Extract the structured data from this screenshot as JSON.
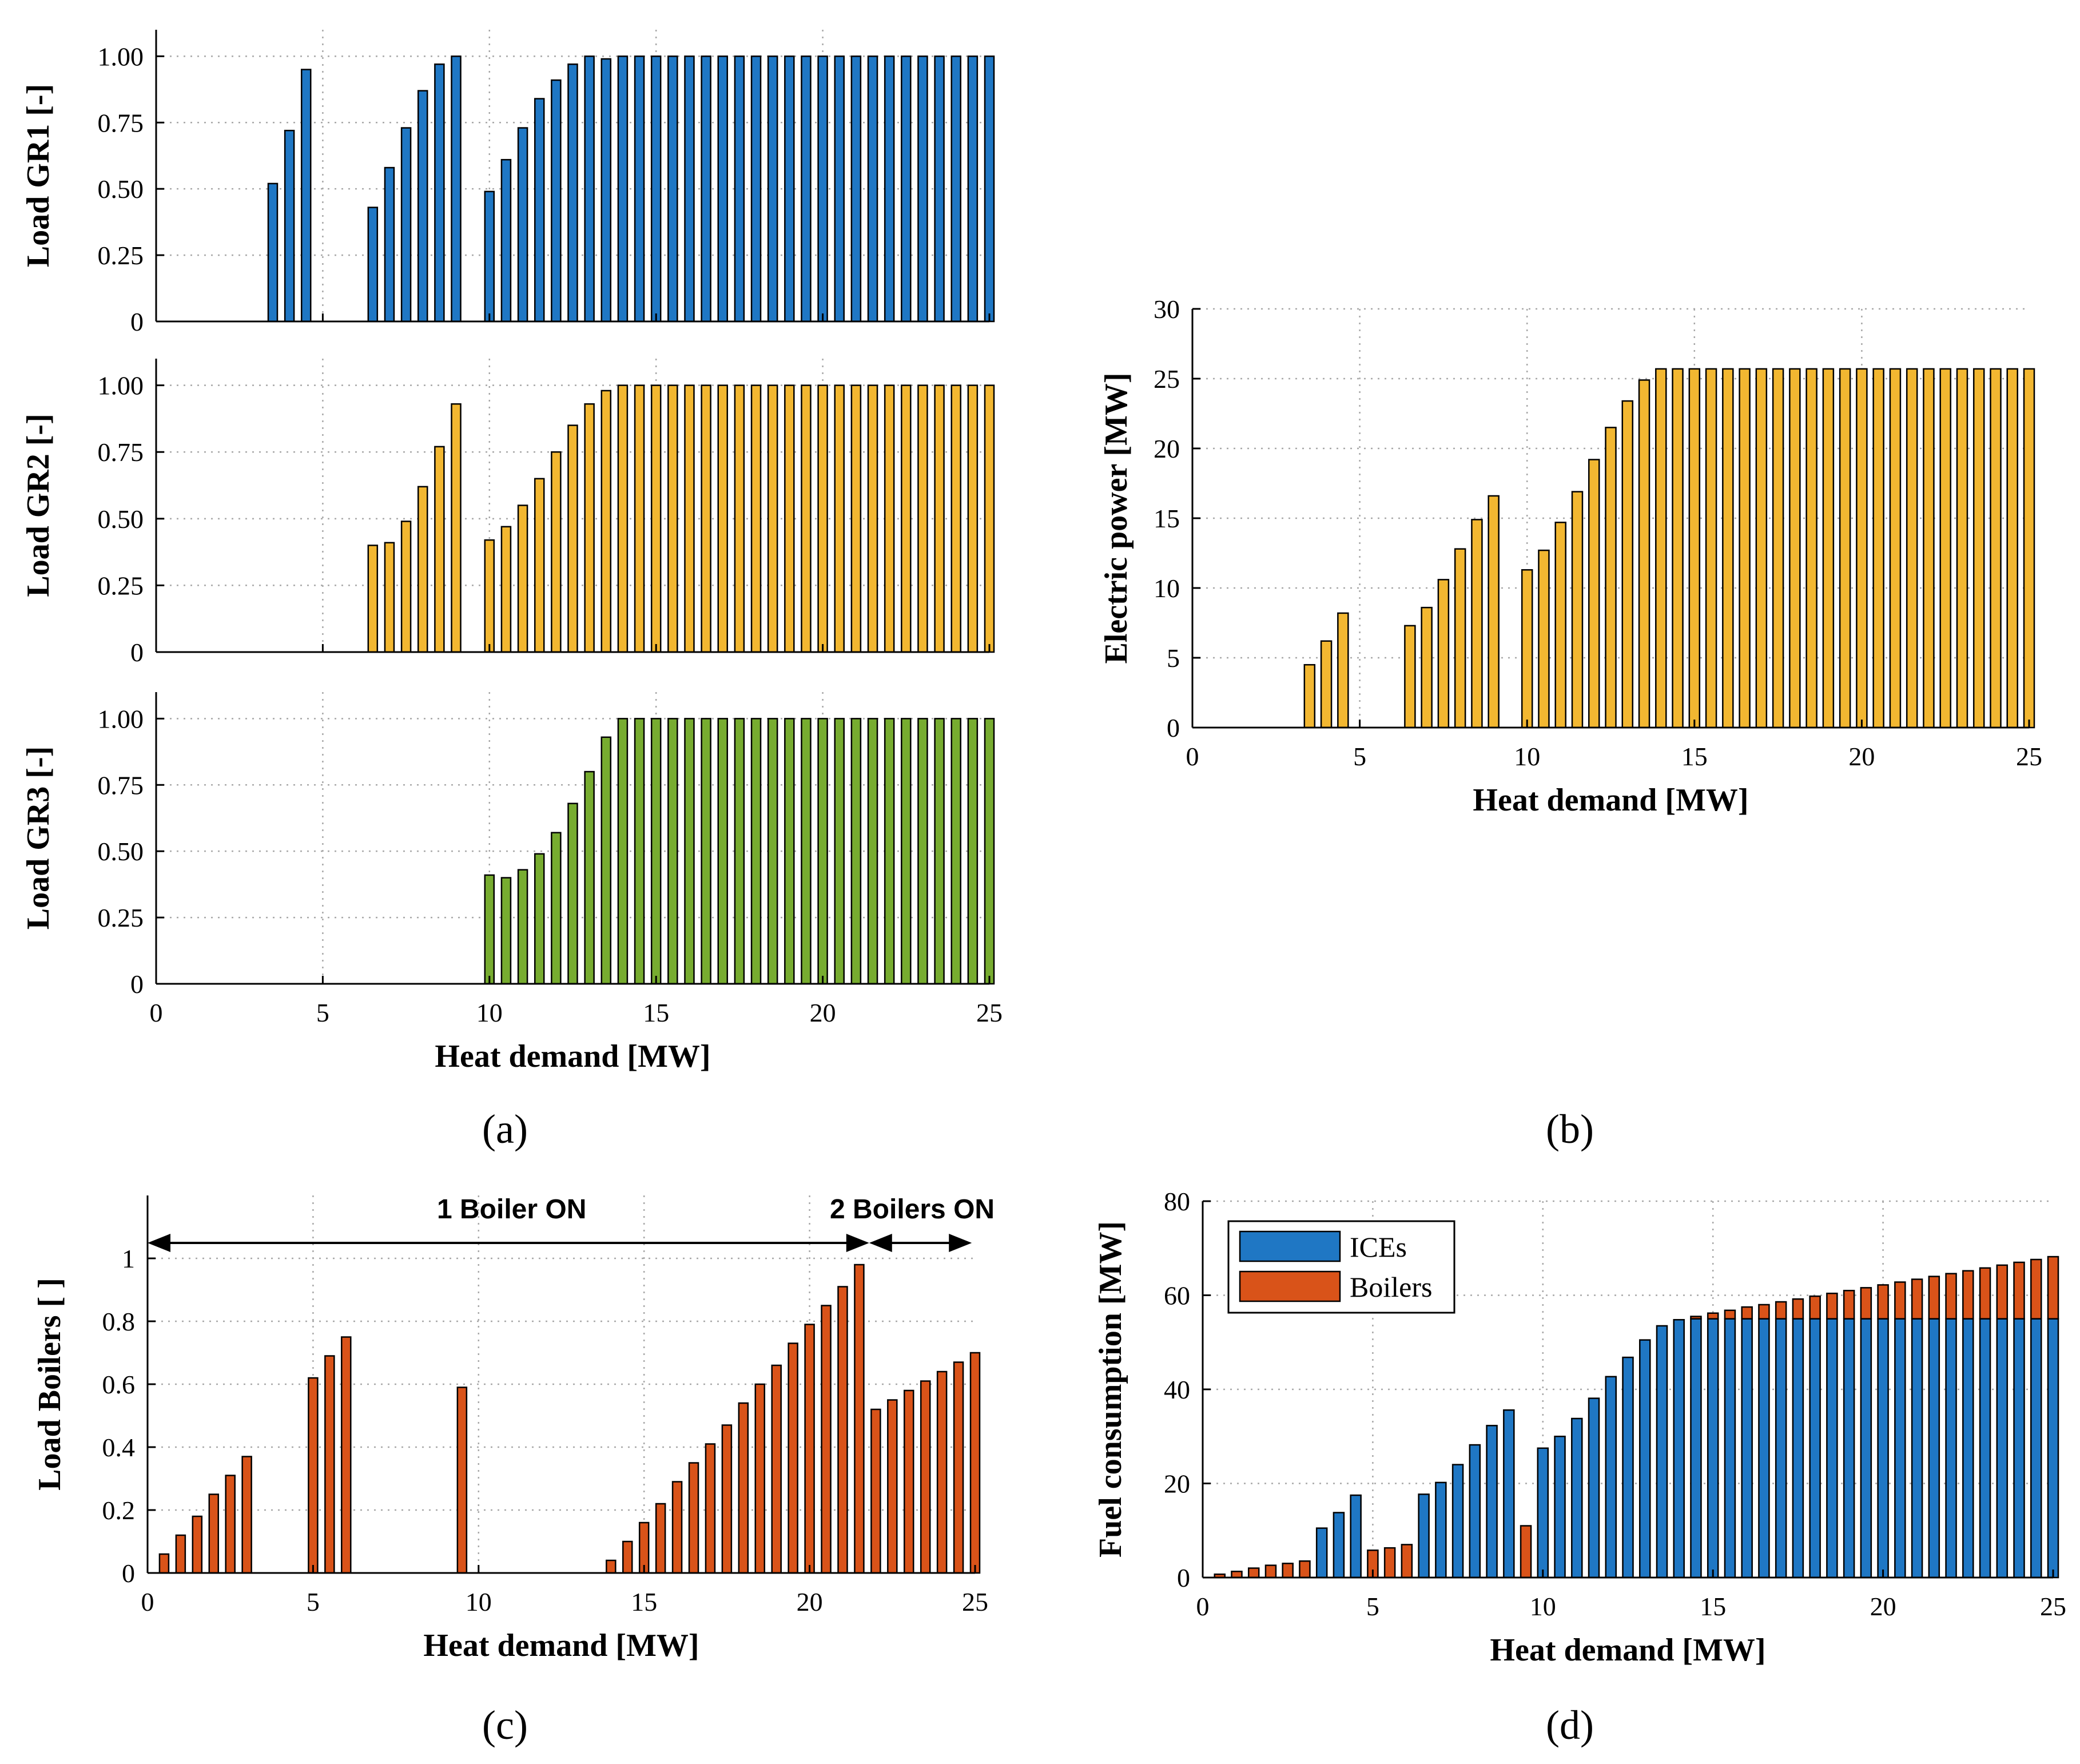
{
  "colors": {
    "ices_blue": "#1f77c4",
    "gr2_yellow": "#f2b731",
    "gr3_green": "#77ac30",
    "boilers_orange": "#d95319"
  },
  "chart_data": [
    {
      "id": "a1",
      "type": "bar",
      "panel": "a",
      "xlabel": "",
      "ylabel": "Load GR1 [-]",
      "xlim": [
        0,
        25
      ],
      "ylim": [
        0,
        1.1
      ],
      "xticks": [
        "0",
        "5",
        "10",
        "15",
        "20",
        "25"
      ],
      "yticks": [
        "0",
        "0.25",
        "0.50",
        "0.75",
        "1.00"
      ],
      "x": [
        3.5,
        4,
        4.5,
        6.5,
        7,
        7.5,
        8,
        8.5,
        9,
        10,
        10.5,
        11,
        11.5,
        12,
        12.5,
        13,
        13.5,
        14,
        14.5,
        15,
        15.5,
        16,
        16.5,
        17,
        17.5,
        18,
        18.5,
        19,
        19.5,
        20,
        20.5,
        21,
        21.5,
        22,
        22.5,
        23,
        23.5,
        24,
        24.5,
        25
      ],
      "values": [
        0.52,
        0.72,
        0.95,
        0.43,
        0.58,
        0.73,
        0.87,
        0.97,
        1.0,
        0.49,
        0.61,
        0.73,
        0.84,
        0.91,
        0.97,
        1.0,
        0.99,
        1,
        1,
        1,
        1,
        1,
        1,
        1,
        1,
        1,
        1,
        1,
        1,
        1,
        1,
        1,
        1,
        1,
        1,
        1,
        1,
        1,
        1,
        1
      ]
    },
    {
      "id": "a2",
      "type": "bar",
      "panel": "a",
      "xlabel": "",
      "ylabel": "Load GR2 [-]",
      "xlim": [
        0,
        25
      ],
      "ylim": [
        0,
        1.1
      ],
      "xticks": [
        "0",
        "5",
        "10",
        "15",
        "20",
        "25"
      ],
      "yticks": [
        "0",
        "0.25",
        "0.50",
        "0.75",
        "1.00"
      ],
      "x": [
        6.5,
        7,
        7.5,
        8,
        8.5,
        9,
        10,
        10.5,
        11,
        11.5,
        12,
        12.5,
        13,
        13.5,
        14,
        14.5,
        15,
        15.5,
        16,
        16.5,
        17,
        17.5,
        18,
        18.5,
        19,
        19.5,
        20,
        20.5,
        21,
        21.5,
        22,
        22.5,
        23,
        23.5,
        24,
        24.5,
        25
      ],
      "values": [
        0.4,
        0.41,
        0.49,
        0.62,
        0.77,
        0.93,
        0.42,
        0.47,
        0.55,
        0.65,
        0.75,
        0.85,
        0.93,
        0.98,
        1,
        1,
        1,
        1,
        1,
        1,
        1,
        1,
        1,
        1,
        1,
        1,
        1,
        1,
        1,
        1,
        1,
        1,
        1,
        1,
        1,
        1,
        1
      ]
    },
    {
      "id": "a3",
      "type": "bar",
      "panel": "a",
      "xlabel": "Heat demand [MW]",
      "ylabel": "Load GR3 [-]",
      "xlim": [
        0,
        25
      ],
      "ylim": [
        0,
        1.1
      ],
      "xticks": [
        "0",
        "5",
        "10",
        "15",
        "20",
        "25"
      ],
      "yticks": [
        "0",
        "0.25",
        "0.50",
        "0.75",
        "1.00"
      ],
      "x": [
        10,
        10.5,
        11,
        11.5,
        12,
        12.5,
        13,
        13.5,
        14,
        14.5,
        15,
        15.5,
        16,
        16.5,
        17,
        17.5,
        18,
        18.5,
        19,
        19.5,
        20,
        20.5,
        21,
        21.5,
        22,
        22.5,
        23,
        23.5,
        24,
        24.5,
        25
      ],
      "values": [
        0.41,
        0.4,
        0.43,
        0.49,
        0.57,
        0.68,
        0.8,
        0.93,
        1,
        1,
        1,
        1,
        1,
        1,
        1,
        1,
        1,
        1,
        1,
        1,
        1,
        1,
        1,
        1,
        1,
        1,
        1,
        1,
        1,
        1,
        1
      ]
    },
    {
      "id": "b",
      "type": "bar",
      "panel": "b",
      "xlabel": "Heat demand [MW]",
      "ylabel": "Electric power [MW]",
      "xlim": [
        0,
        25
      ],
      "ylim": [
        0,
        30
      ],
      "xticks": [
        "0",
        "5",
        "10",
        "15",
        "20",
        "25"
      ],
      "yticks": [
        "0",
        "5",
        "10",
        "15",
        "20",
        "25",
        "30"
      ],
      "x": [
        3.5,
        4,
        4.5,
        6.5,
        7,
        7.5,
        8,
        8.5,
        9,
        10,
        10.5,
        11,
        11.5,
        12,
        12.5,
        13,
        13.5,
        14,
        14.5,
        15,
        15.5,
        16,
        16.5,
        17,
        17.5,
        18,
        18.5,
        19,
        19.5,
        20,
        20.5,
        21,
        21.5,
        22,
        22.5,
        23,
        23.5,
        24,
        24.5,
        25
      ],
      "values": [
        4.5,
        6.2,
        8.2,
        7.3,
        8.6,
        10.6,
        12.8,
        14.9,
        16.6,
        11.3,
        12.7,
        14.7,
        16.9,
        19.2,
        21.5,
        23.4,
        24.9,
        25.7,
        25.7,
        25.7,
        25.7,
        25.7,
        25.7,
        25.7,
        25.7,
        25.7,
        25.7,
        25.7,
        25.7,
        25.7,
        25.7,
        25.7,
        25.7,
        25.7,
        25.7,
        25.7,
        25.7,
        25.7,
        25.7,
        25.7
      ]
    },
    {
      "id": "c",
      "type": "bar",
      "panel": "c",
      "xlabel": "Heat demand [MW]",
      "ylabel": "Load Boilers [ ]",
      "xlim": [
        0,
        25
      ],
      "ylim": [
        0,
        1.2
      ],
      "xticks": [
        "0",
        "5",
        "10",
        "15",
        "20",
        "25"
      ],
      "yticks": [
        "0",
        "0.2",
        "0.4",
        "0.6",
        "0.8",
        "1"
      ],
      "x": [
        0.5,
        1,
        1.5,
        2,
        2.5,
        3,
        5,
        5.5,
        6,
        9.5,
        14,
        14.5,
        15,
        15.5,
        16,
        16.5,
        17,
        17.5,
        18,
        18.5,
        19,
        19.5,
        20,
        20.5,
        21,
        21.5,
        22,
        22.5,
        23,
        23.5,
        24,
        24.5,
        25
      ],
      "values": [
        0.06,
        0.12,
        0.18,
        0.25,
        0.31,
        0.37,
        0.62,
        0.69,
        0.75,
        0.59,
        0.04,
        0.1,
        0.16,
        0.22,
        0.29,
        0.35,
        0.41,
        0.47,
        0.54,
        0.6,
        0.66,
        0.73,
        0.79,
        0.85,
        0.91,
        0.98,
        0.52,
        0.55,
        0.58,
        0.61,
        0.64,
        0.67,
        0.7
      ],
      "annotations": [
        "1 Boiler ON",
        "2 Boilers ON"
      ]
    },
    {
      "id": "d",
      "type": "bar",
      "stacked": true,
      "panel": "d",
      "xlabel": "Heat demand [MW]",
      "ylabel": "Fuel consumption [MW]",
      "xlim": [
        0,
        25
      ],
      "ylim": [
        0,
        80
      ],
      "xticks": [
        "0",
        "5",
        "10",
        "15",
        "20",
        "25"
      ],
      "yticks": [
        "0",
        "20",
        "40",
        "60",
        "80"
      ],
      "x": [
        0.5,
        1,
        1.5,
        2,
        2.5,
        3,
        3.5,
        4,
        4.5,
        5,
        5.5,
        6,
        6.5,
        7,
        7.5,
        8,
        8.5,
        9,
        9.5,
        10,
        10.5,
        11,
        11.5,
        12,
        12.5,
        13,
        13.5,
        14,
        14.5,
        15,
        15.5,
        16,
        16.5,
        17,
        17.5,
        18,
        18.5,
        19,
        19.5,
        20,
        20.5,
        21,
        21.5,
        22,
        22.5,
        23,
        23.5,
        24,
        24.5,
        25
      ],
      "series": [
        {
          "name": "ICEs",
          "values": [
            0,
            0,
            0,
            0,
            0,
            0,
            10.5,
            13.8,
            17.5,
            0,
            0,
            0,
            17.7,
            20.2,
            24,
            28.2,
            32.3,
            35.6,
            0,
            27.5,
            30,
            33.8,
            38.1,
            42.7,
            46.8,
            50.5,
            53.5,
            54.8,
            55,
            55,
            55,
            55,
            55,
            55,
            55,
            55,
            55,
            55,
            55,
            55,
            55,
            55,
            55,
            55,
            55,
            55,
            55,
            55,
            55,
            55
          ]
        },
        {
          "name": "Boilers",
          "values": [
            0.7,
            1.3,
            2,
            2.6,
            3,
            3.5,
            0,
            0,
            0,
            5.8,
            6.3,
            7,
            0,
            0,
            0,
            0,
            0,
            0,
            11,
            0,
            0,
            0,
            0,
            0,
            0,
            0,
            0,
            0,
            0.5,
            1.2,
            1.8,
            2.5,
            3,
            3.6,
            4.2,
            4.8,
            5.4,
            6,
            6.6,
            7.2,
            7.8,
            8.4,
            9,
            9.6,
            10.2,
            10.8,
            11.4,
            12,
            12.6,
            13.2
          ]
        }
      ],
      "legend": [
        "ICEs",
        "Boilers"
      ]
    }
  ],
  "panel_labels": {
    "a": "(a)",
    "b": "(b)",
    "c": "(c)",
    "d": "(d)"
  }
}
